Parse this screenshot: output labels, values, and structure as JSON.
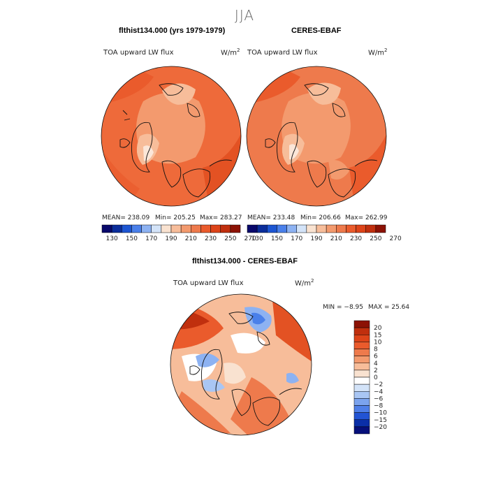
{
  "page": {
    "title": "JJA"
  },
  "panels": [
    {
      "title": "flthist134.000 (yrs 1979-1979)",
      "variable": "TOA upward LW flux",
      "units_base": "W/m",
      "units_exp": "2",
      "stats": {
        "mean": "MEAN= 238.09",
        "min": "Min= 205.25",
        "max": "Max= 283.27"
      }
    },
    {
      "title": "CERES-EBAF",
      "variable": "TOA upward LW flux",
      "units_base": "W/m",
      "units_exp": "2",
      "stats": {
        "mean": "MEAN= 233.48",
        "min": "Min= 206.66",
        "max": "Max= 262.99"
      }
    },
    {
      "title": "flthist134.000 - CERES-EBAF",
      "variable": "TOA upward LW flux",
      "units_base": "W/m",
      "units_exp": "2",
      "stats": {
        "min": "MIN =  −8.95",
        "max": "MAX =  25.64"
      }
    }
  ],
  "chart_data": [
    {
      "type": "heatmap",
      "projection": "north-polar-stereographic",
      "colorbar": {
        "orientation": "horizontal",
        "tick_labels": [
          "130",
          "150",
          "170",
          "190",
          "210",
          "230",
          "250",
          "270"
        ],
        "colors": [
          "#08086b",
          "#0b2d9a",
          "#1d56d2",
          "#4a80ea",
          "#8db2f2",
          "#d3e3f8",
          "#f9e2d0",
          "#f7bd9a",
          "#f39a6e",
          "#ee7a4c",
          "#ea5b2c",
          "#dd4419",
          "#c02f0e",
          "#8c1205"
        ]
      }
    },
    {
      "type": "heatmap",
      "projection": "north-polar-stereographic",
      "colorbar": {
        "orientation": "horizontal",
        "tick_labels": [
          "130",
          "150",
          "170",
          "190",
          "210",
          "230",
          "250",
          "270"
        ],
        "colors": [
          "#08086b",
          "#0b2d9a",
          "#1d56d2",
          "#4a80ea",
          "#8db2f2",
          "#d3e3f8",
          "#f9e2d0",
          "#f7bd9a",
          "#f39a6e",
          "#ee7a4c",
          "#ea5b2c",
          "#dd4419",
          "#c02f0e",
          "#8c1205"
        ]
      }
    },
    {
      "type": "heatmap",
      "projection": "north-polar-stereographic",
      "colorbar": {
        "orientation": "vertical",
        "tick_labels": [
          "20",
          "15",
          "10",
          "8",
          "6",
          "4",
          "2",
          "0",
          "−2",
          "−4",
          "−6",
          "−8",
          "−10",
          "−15",
          "−20"
        ],
        "colors": [
          "#8c1205",
          "#c02f0e",
          "#dd4419",
          "#ea5b2c",
          "#ee7a4c",
          "#f39a6e",
          "#f7bd9a",
          "#f9e2d0",
          "#ffffff",
          "#d3e3f8",
          "#a9c6f4",
          "#7ba3ee",
          "#4f7fe8",
          "#2254d4",
          "#0a2fa8",
          "#060f7a"
        ]
      }
    }
  ]
}
